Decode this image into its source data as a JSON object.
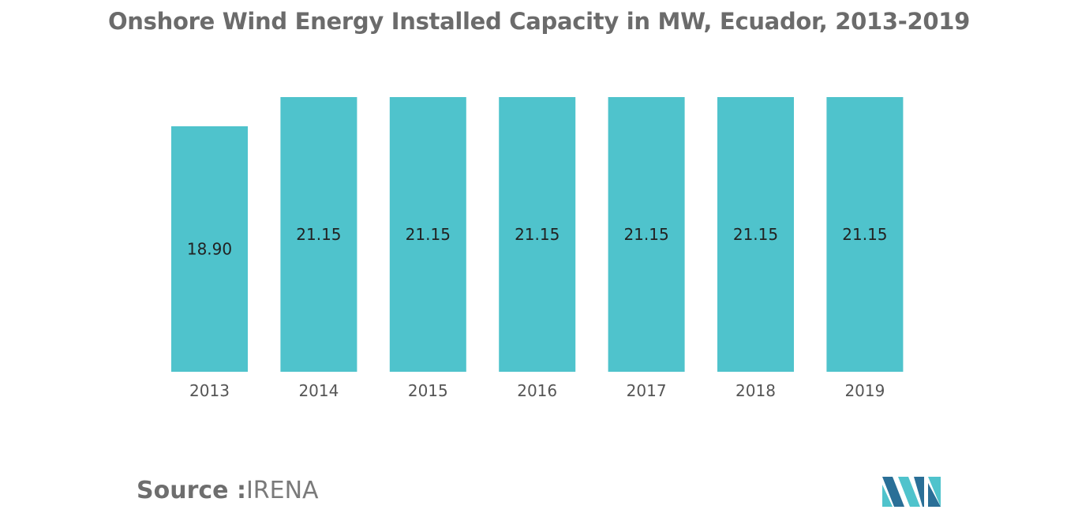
{
  "title": "Onshore Wind Energy Installed Capacity in MW, Ecuador, 2013-2019",
  "source": {
    "lead": "Source :",
    "value": "IRENA"
  },
  "logo": {
    "icon": "mordor-intelligence-logo-icon",
    "colors": [
      "#2a6f97",
      "#4fc3cc"
    ]
  },
  "chart_data": {
    "type": "bar",
    "title": "Onshore Wind Energy Installed Capacity in MW, Ecuador, 2013-2019",
    "xlabel": "",
    "ylabel": "",
    "categories": [
      "2013",
      "2014",
      "2015",
      "2016",
      "2017",
      "2018",
      "2019"
    ],
    "values": [
      18.9,
      21.15,
      21.15,
      21.15,
      21.15,
      21.15,
      21.15
    ],
    "value_labels": [
      "18.90",
      "21.15",
      "21.15",
      "21.15",
      "21.15",
      "21.15",
      "21.15"
    ],
    "ylim": [
      0,
      21.15
    ],
    "grid": false,
    "legend": "none",
    "bar_color": "#4fc3cc"
  }
}
